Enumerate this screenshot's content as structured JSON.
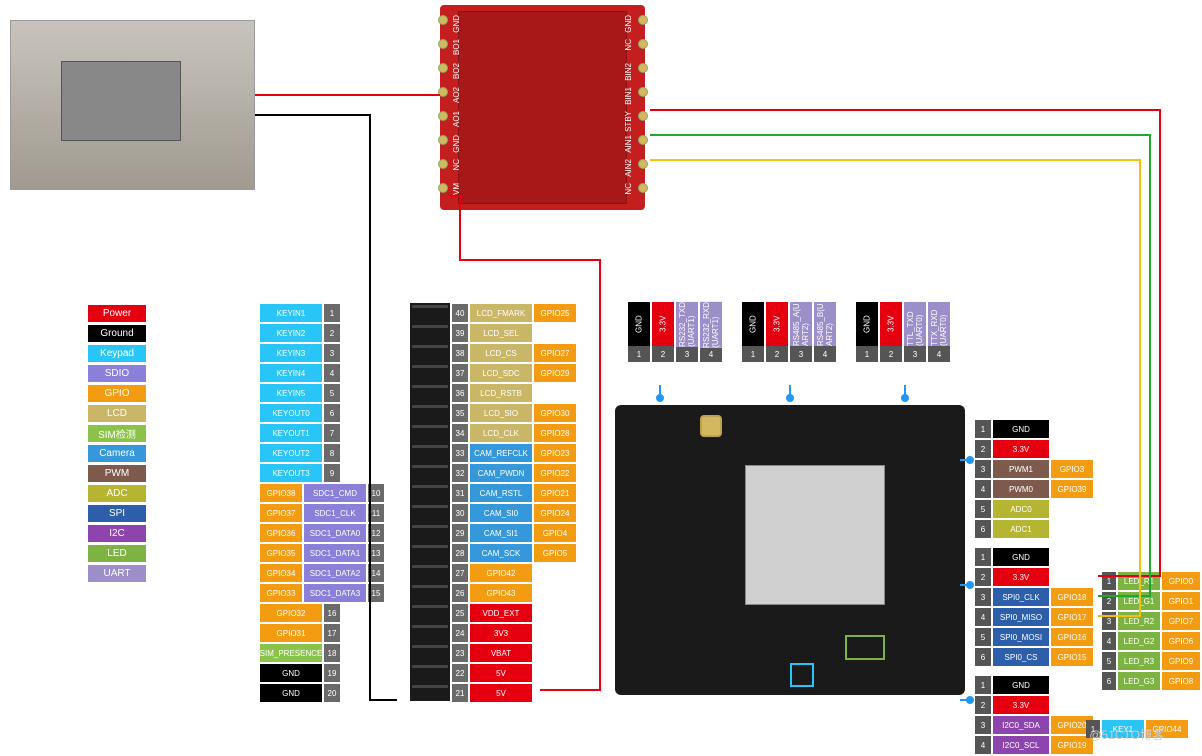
{
  "colors": {
    "power": "#e6000f",
    "ground": "#000000",
    "keypad": "#29c5f6",
    "sdio": "#8a7fd9",
    "gpio": "#f39c12",
    "lcd": "#c9b667",
    "sim": "#8bc34a",
    "camera": "#3498db",
    "pwm": "#7d5a4c",
    "adc": "#b5b531",
    "spi": "#2c5eaa",
    "i2c": "#8e44ad",
    "led": "#7cb342",
    "uart": "#9b8ec9",
    "gray": "#555555",
    "numgray": "#6a6a6a"
  },
  "legend": [
    {
      "label": "Power",
      "c": "#e6000f"
    },
    {
      "label": "Ground",
      "c": "#000000"
    },
    {
      "label": "Keypad",
      "c": "#29c5f6"
    },
    {
      "label": "SDIO",
      "c": "#8a7fd9"
    },
    {
      "label": "GPIO",
      "c": "#f39c12"
    },
    {
      "label": "LCD",
      "c": "#c9b667"
    },
    {
      "label": "SIM检测",
      "c": "#8bc34a"
    },
    {
      "label": "Camera",
      "c": "#3498db"
    },
    {
      "label": "PWM",
      "c": "#7d5a4c"
    },
    {
      "label": "ADC",
      "c": "#b5b531"
    },
    {
      "label": "SPI",
      "c": "#2c5eaa"
    },
    {
      "label": "I2C",
      "c": "#8e44ad"
    },
    {
      "label": "LED",
      "c": "#7cb342"
    },
    {
      "label": "UART",
      "c": "#9b8ec9"
    }
  ],
  "leftCol": [
    {
      "n": "1",
      "lab": "KEYIN1",
      "lc": "#29c5f6"
    },
    {
      "n": "2",
      "lab": "KEYIN2",
      "lc": "#29c5f6"
    },
    {
      "n": "3",
      "lab": "KEYIN3",
      "lc": "#29c5f6"
    },
    {
      "n": "4",
      "lab": "KEYIN4",
      "lc": "#29c5f6"
    },
    {
      "n": "5",
      "lab": "KEYIN5",
      "lc": "#29c5f6"
    },
    {
      "n": "6",
      "lab": "KEYOUT0",
      "lc": "#29c5f6"
    },
    {
      "n": "7",
      "lab": "KEYOUT1",
      "lc": "#29c5f6"
    },
    {
      "n": "8",
      "lab": "KEYOUT2",
      "lc": "#29c5f6"
    },
    {
      "n": "9",
      "lab": "KEYOUT3",
      "lc": "#29c5f6"
    },
    {
      "n": "10",
      "lab": "SDC1_CMD",
      "lc": "#8a7fd9",
      "gp": "GPIO38",
      "gc": "#f39c12"
    },
    {
      "n": "11",
      "lab": "SDC1_CLK",
      "lc": "#8a7fd9",
      "gp": "GPIO37",
      "gc": "#f39c12"
    },
    {
      "n": "12",
      "lab": "SDC1_DATA0",
      "lc": "#8a7fd9",
      "gp": "GPIO36",
      "gc": "#f39c12"
    },
    {
      "n": "13",
      "lab": "SDC1_DATA1",
      "lc": "#8a7fd9",
      "gp": "GPIO35",
      "gc": "#f39c12"
    },
    {
      "n": "14",
      "lab": "SDC1_DATA2",
      "lc": "#8a7fd9",
      "gp": "GPIO34",
      "gc": "#f39c12"
    },
    {
      "n": "15",
      "lab": "SDC1_DATA3",
      "lc": "#8a7fd9",
      "gp": "GPIO33",
      "gc": "#f39c12"
    },
    {
      "n": "16",
      "lab": "GPIO32",
      "lc": "#f39c12"
    },
    {
      "n": "17",
      "lab": "GPIO31",
      "lc": "#f39c12"
    },
    {
      "n": "18",
      "lab": "SIM_PRESENCE",
      "lc": "#8bc34a"
    },
    {
      "n": "19",
      "lab": "GND",
      "lc": "#000000"
    },
    {
      "n": "20",
      "lab": "GND",
      "lc": "#000000"
    }
  ],
  "rightCol": [
    {
      "n": "40",
      "lab": "LCD_FMARK",
      "lc": "#c9b667",
      "gp": "GPIO25",
      "gc": "#f39c12"
    },
    {
      "n": "39",
      "lab": "LCD_SEL",
      "lc": "#c9b667"
    },
    {
      "n": "38",
      "lab": "LCD_CS",
      "lc": "#c9b667",
      "gp": "GPIO27",
      "gc": "#f39c12"
    },
    {
      "n": "37",
      "lab": "LCD_SDC",
      "lc": "#c9b667",
      "gp": "GPIO29",
      "gc": "#f39c12"
    },
    {
      "n": "36",
      "lab": "LCD_RSTB",
      "lc": "#c9b667"
    },
    {
      "n": "35",
      "lab": "LCD_SIO",
      "lc": "#c9b667",
      "gp": "GPIO30",
      "gc": "#f39c12"
    },
    {
      "n": "34",
      "lab": "LCD_CLK",
      "lc": "#c9b667",
      "gp": "GPIO28",
      "gc": "#f39c12"
    },
    {
      "n": "33",
      "lab": "CAM_REFCLK",
      "lc": "#3498db",
      "gp": "GPIO23",
      "gc": "#f39c12"
    },
    {
      "n": "32",
      "lab": "CAM_PWDN",
      "lc": "#3498db",
      "gp": "GPIO22",
      "gc": "#f39c12"
    },
    {
      "n": "31",
      "lab": "CAM_RSTL",
      "lc": "#3498db",
      "gp": "GPIO21",
      "gc": "#f39c12"
    },
    {
      "n": "30",
      "lab": "CAM_SI0",
      "lc": "#3498db",
      "gp": "GPIO24",
      "gc": "#f39c12"
    },
    {
      "n": "29",
      "lab": "CAM_SI1",
      "lc": "#3498db",
      "gp": "GPIO4",
      "gc": "#f39c12"
    },
    {
      "n": "28",
      "lab": "CAM_SCK",
      "lc": "#3498db",
      "gp": "GPIO5",
      "gc": "#f39c12"
    },
    {
      "n": "27",
      "lab": "GPIO42",
      "lc": "#f39c12"
    },
    {
      "n": "26",
      "lab": "GPIO43",
      "lc": "#f39c12"
    },
    {
      "n": "25",
      "lab": "VDD_EXT",
      "lc": "#e6000f"
    },
    {
      "n": "24",
      "lab": "3V3",
      "lc": "#e6000f"
    },
    {
      "n": "23",
      "lab": "VBAT",
      "lc": "#e6000f"
    },
    {
      "n": "22",
      "lab": "5V",
      "lc": "#e6000f"
    },
    {
      "n": "21",
      "lab": "5V",
      "lc": "#e6000f"
    }
  ],
  "uart1": [
    {
      "lab": "GND",
      "c": "#000000"
    },
    {
      "lab": "3.3V",
      "c": "#e6000f"
    },
    {
      "lab": "RS232_TXD (UART1)",
      "c": "#9b8ec9"
    },
    {
      "lab": "RS232_RXD (UART1)",
      "c": "#9b8ec9"
    }
  ],
  "uart2": [
    {
      "lab": "GND",
      "c": "#000000"
    },
    {
      "lab": "3.3V",
      "c": "#e6000f"
    },
    {
      "lab": "RS485_A(U ART2)",
      "c": "#9b8ec9"
    },
    {
      "lab": "RS485_B(U ART2)",
      "c": "#9b8ec9"
    }
  ],
  "uart0": [
    {
      "lab": "GND",
      "c": "#000000"
    },
    {
      "lab": "3.3V",
      "c": "#e6000f"
    },
    {
      "lab": "TTL_TXD (UART0)",
      "c": "#9b8ec9"
    },
    {
      "lab": "TTX_RXD (UART0)",
      "c": "#9b8ec9"
    }
  ],
  "rightA": [
    {
      "n": "1",
      "lab": "GND",
      "lc": "#000000"
    },
    {
      "n": "2",
      "lab": "3.3V",
      "lc": "#e6000f"
    },
    {
      "n": "3",
      "lab": "PWM1",
      "lc": "#7d5a4c",
      "gp": "GPIO3",
      "gc": "#f39c12"
    },
    {
      "n": "4",
      "lab": "PWM0",
      "lc": "#7d5a4c",
      "gp": "GPIO39",
      "gc": "#f39c12"
    },
    {
      "n": "5",
      "lab": "ADC0",
      "lc": "#b5b531"
    },
    {
      "n": "6",
      "lab": "ADC1",
      "lc": "#b5b531"
    }
  ],
  "rightB": [
    {
      "n": "1",
      "lab": "GND",
      "lc": "#000000"
    },
    {
      "n": "2",
      "lab": "3.3V",
      "lc": "#e6000f"
    },
    {
      "n": "3",
      "lab": "SPI0_CLK",
      "lc": "#2c5eaa",
      "gp": "GPIO18",
      "gc": "#f39c12"
    },
    {
      "n": "4",
      "lab": "SPI0_MISO",
      "lc": "#2c5eaa",
      "gp": "GPIO17",
      "gc": "#f39c12"
    },
    {
      "n": "5",
      "lab": "SPI0_MOSI",
      "lc": "#2c5eaa",
      "gp": "GPIO16",
      "gc": "#f39c12"
    },
    {
      "n": "6",
      "lab": "SPI0_CS",
      "lc": "#2c5eaa",
      "gp": "GPIO15",
      "gc": "#f39c12"
    }
  ],
  "rightC": [
    {
      "n": "1",
      "lab": "GND",
      "lc": "#000000"
    },
    {
      "n": "2",
      "lab": "3.3V",
      "lc": "#e6000f"
    },
    {
      "n": "3",
      "lab": "I2C0_SDA",
      "lc": "#8e44ad",
      "gp": "GPIO20",
      "gc": "#f39c12"
    },
    {
      "n": "4",
      "lab": "I2C0_SCL",
      "lc": "#8e44ad",
      "gp": "GPIO19",
      "gc": "#f39c12"
    }
  ],
  "ledCol": [
    {
      "n": "1",
      "lab": "LED_R1",
      "lc": "#7cb342",
      "gp": "GPIO0",
      "gc": "#f39c12"
    },
    {
      "n": "2",
      "lab": "LED_G1",
      "lc": "#7cb342",
      "gp": "GPIO1",
      "gc": "#f39c12"
    },
    {
      "n": "3",
      "lab": "LED_R2",
      "lc": "#7cb342",
      "gp": "GPIO7",
      "gc": "#f39c12"
    },
    {
      "n": "4",
      "lab": "LED_G2",
      "lc": "#7cb342",
      "gp": "GPIO6",
      "gc": "#f39c12"
    },
    {
      "n": "5",
      "lab": "LED_R3",
      "lc": "#7cb342",
      "gp": "GPIO9",
      "gc": "#f39c12"
    },
    {
      "n": "6",
      "lab": "LED_G3",
      "lc": "#7cb342",
      "gp": "GPIO8",
      "gc": "#f39c12"
    }
  ],
  "keyRow": {
    "n": "1",
    "lab": "KEY1",
    "lc": "#29c5f6",
    "gp": "GPIO44",
    "gc": "#f39c12"
  },
  "driverLeft": [
    "GND",
    "BO1",
    "BO2",
    "AO2",
    "AO1",
    "GND",
    "NC",
    "VM"
  ],
  "driverRight": [
    "GND",
    "NC",
    "BIN2",
    "BIN1",
    "STBY",
    "AIN1",
    "AIN2",
    "NC"
  ],
  "watermark": "@51CTO博客"
}
